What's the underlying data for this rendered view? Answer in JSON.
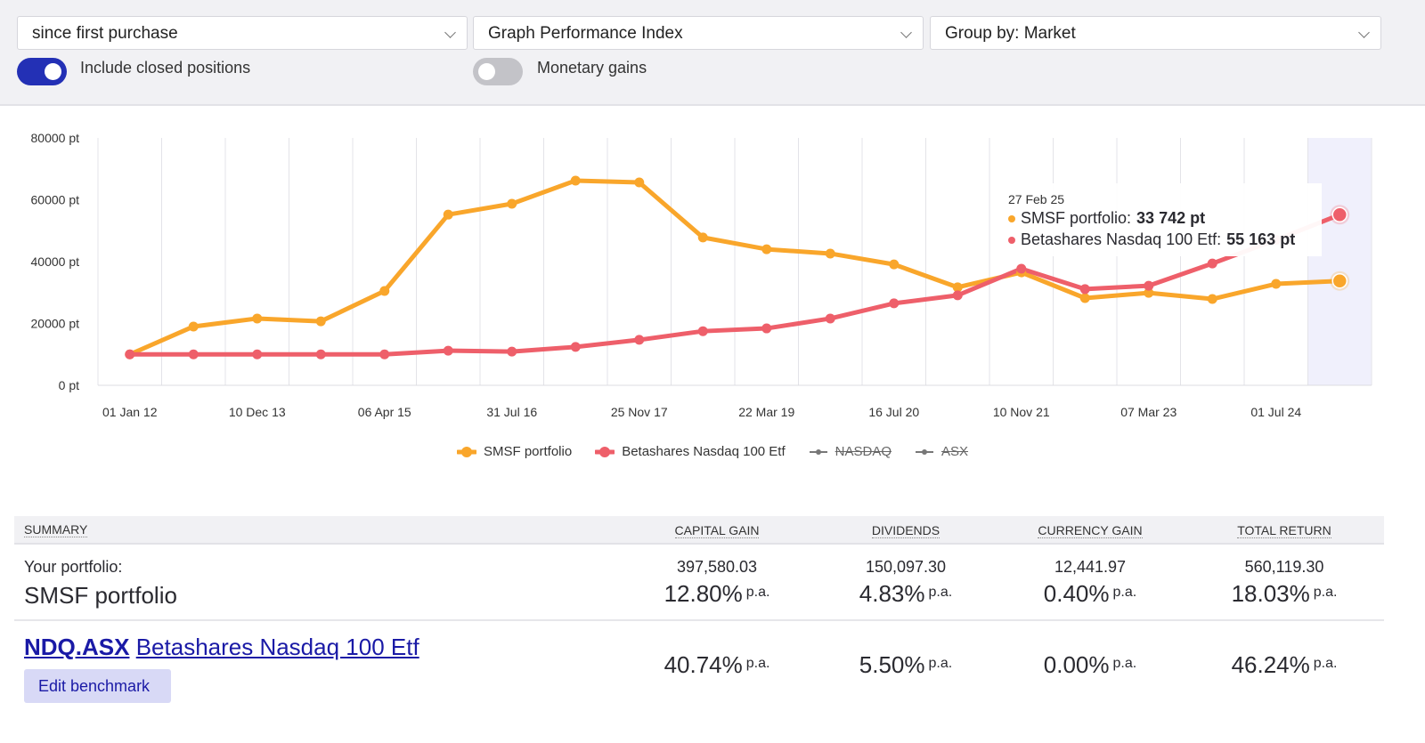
{
  "controls": {
    "period_select": "since first purchase",
    "graph_select": "Graph Performance Index",
    "group_select": "Group by: Market",
    "toggles": [
      {
        "label": "Include closed positions",
        "on": true
      },
      {
        "label": "Monetary gains",
        "on": false
      }
    ],
    "colors": {
      "toggle_on": "#2330b5",
      "toggle_off": "#c3c3c8"
    }
  },
  "chart_data": {
    "type": "line",
    "y_unit": "pt",
    "ylim": [
      0,
      80000
    ],
    "y_ticks": [
      "0 pt",
      "20000 pt",
      "40000 pt",
      "60000 pt",
      "80000 pt"
    ],
    "x_ticks": [
      "01 Jan 12",
      "10 Dec 13",
      "06 Apr 15",
      "31 Jul 16",
      "25 Nov 17",
      "22 Mar 19",
      "16 Jul 20",
      "10 Nov 21",
      "07 Mar 23",
      "01 Jul 24"
    ],
    "grid": true,
    "legend_placement": "bottom",
    "series": [
      {
        "name": "SMSF portfolio",
        "color": "#f9a62b",
        "visible": true,
        "values": [
          10000,
          19000,
          21600,
          20700,
          30500,
          55200,
          58700,
          66200,
          65600,
          47800,
          44000,
          42600,
          39100,
          31700,
          36500,
          28200,
          29900,
          27900,
          32800,
          33742
        ]
      },
      {
        "name": "Betashares Nasdaq 100 Etf",
        "color": "#ee5f6a",
        "visible": true,
        "values": [
          10000,
          10000,
          10000,
          10000,
          10000,
          11200,
          10900,
          12400,
          14700,
          17500,
          18400,
          21600,
          26500,
          29100,
          37700,
          31100,
          32200,
          39400,
          47000,
          55163
        ]
      },
      {
        "name": "NASDAQ",
        "color": "#666666",
        "visible": false,
        "values": []
      },
      {
        "name": "ASX",
        "color": "#666666",
        "visible": false,
        "values": []
      }
    ],
    "highlight_color": "#f0f0fc",
    "tooltip": {
      "date": "27 Feb 25",
      "rows": [
        {
          "label": "SMSF portfolio: ",
          "value": "33 742 pt",
          "color": "#f9a62b"
        },
        {
          "label": "Betashares Nasdaq 100 Etf: ",
          "value": "55 163 pt",
          "color": "#ee5f6a"
        }
      ]
    }
  },
  "summary": {
    "headers": [
      "SUMMARY",
      "CAPITAL GAIN",
      "DIVIDENDS",
      "CURRENCY GAIN",
      "TOTAL RETURN"
    ],
    "portfolio": {
      "label": "Your portfolio:",
      "name": "SMSF portfolio",
      "amounts": [
        "397,580.03",
        "150,097.30",
        "12,441.97",
        "560,119.30"
      ],
      "percents": [
        "12.80%",
        "4.83%",
        "0.40%",
        "18.03%"
      ],
      "pa": "p.a."
    },
    "benchmark": {
      "code": "NDQ.ASX",
      "name": "Betashares Nasdaq 100 Etf",
      "percents": [
        "40.74%",
        "5.50%",
        "0.00%",
        "46.24%"
      ],
      "pa": "p.a.",
      "edit_label": "Edit benchmark"
    }
  }
}
